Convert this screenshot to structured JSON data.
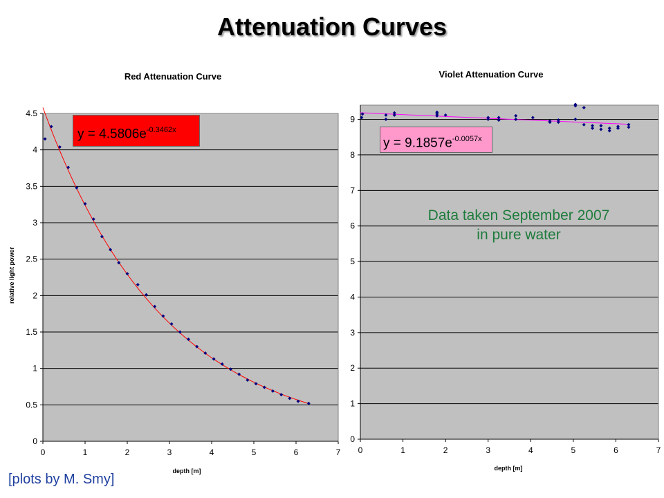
{
  "slide_title": "Attenuation Curves",
  "note": [
    "Data taken September 2007",
    "in pure water"
  ],
  "credit": "[plots by M. Smy]",
  "colors": {
    "plot_bg": "#c0c0c0",
    "red_fit": "#ff0000",
    "violet_fit": "#ff00ff",
    "points": "#000080",
    "red_eq_box": "#ff0000",
    "violet_eq_box": "#ff99cc",
    "note_text": "#1e7b3c",
    "credit_text": "#1f3f9f"
  },
  "chart_data": [
    {
      "type": "scatter",
      "title": "Red Attenuation Curve",
      "xlabel": "depth [m]",
      "ylabel": "relative light power",
      "xlim": [
        0,
        7
      ],
      "ylim": [
        0,
        4.5
      ],
      "x_ticks": [
        "0",
        "1",
        "2",
        "3",
        "4",
        "5",
        "6",
        "7"
      ],
      "y_ticks": [
        "0",
        "0.5",
        "1",
        "1.5",
        "2",
        "2.5",
        "3",
        "3.5",
        "4",
        "4.5"
      ],
      "grid": "horizontal",
      "trendline": {
        "label_main": "y = 4.5806e",
        "label_exp": "-0.3462x",
        "a": 4.5806,
        "b": -0.3462,
        "x_range": [
          0,
          6.3
        ]
      },
      "points": [
        [
          0.05,
          4.15
        ],
        [
          0.2,
          4.32
        ],
        [
          0.4,
          4.04
        ],
        [
          0.6,
          3.76
        ],
        [
          0.8,
          3.48
        ],
        [
          1.0,
          3.26
        ],
        [
          1.2,
          3.05
        ],
        [
          1.4,
          2.81
        ],
        [
          1.6,
          2.63
        ],
        [
          1.8,
          2.45
        ],
        [
          2.0,
          2.3
        ],
        [
          2.25,
          2.15
        ],
        [
          2.45,
          2.01
        ],
        [
          2.65,
          1.85
        ],
        [
          2.85,
          1.72
        ],
        [
          3.05,
          1.61
        ],
        [
          3.25,
          1.5
        ],
        [
          3.45,
          1.4
        ],
        [
          3.65,
          1.3
        ],
        [
          3.85,
          1.21
        ],
        [
          4.05,
          1.13
        ],
        [
          4.25,
          1.06
        ],
        [
          4.45,
          0.99
        ],
        [
          4.65,
          0.92
        ],
        [
          4.85,
          0.84
        ],
        [
          5.05,
          0.79
        ],
        [
          5.25,
          0.74
        ],
        [
          5.45,
          0.69
        ],
        [
          5.65,
          0.64
        ],
        [
          5.85,
          0.59
        ],
        [
          6.05,
          0.55
        ],
        [
          6.3,
          0.52
        ]
      ]
    },
    {
      "type": "scatter",
      "title": "Violet Attenuation Curve",
      "xlabel": "depth [m]",
      "ylabel": "",
      "xlim": [
        0,
        7
      ],
      "ylim": [
        0,
        9.4
      ],
      "x_ticks": [
        "0",
        "1",
        "2",
        "3",
        "4",
        "5",
        "6",
        "7"
      ],
      "y_ticks": [
        "0",
        "1",
        "2",
        "3",
        "4",
        "5",
        "6",
        "7",
        "8",
        "9"
      ],
      "grid": "horizontal",
      "trendline": {
        "label_main": "y = 9.1857e",
        "label_exp": "-0.0057x",
        "a": 9.1857,
        "b": -0.0057,
        "x_range": [
          0,
          6.3
        ]
      },
      "points": [
        [
          0.03,
          9.05
        ],
        [
          0.05,
          9.15
        ],
        [
          0.6,
          9.0
        ],
        [
          0.6,
          9.12
        ],
        [
          0.8,
          9.12
        ],
        [
          0.8,
          9.18
        ],
        [
          1.8,
          9.1
        ],
        [
          1.8,
          9.15
        ],
        [
          1.8,
          9.2
        ],
        [
          2.0,
          9.12
        ],
        [
          3.0,
          9.0
        ],
        [
          3.0,
          9.05
        ],
        [
          3.25,
          8.98
        ],
        [
          3.25,
          9.05
        ],
        [
          3.65,
          9.0
        ],
        [
          3.65,
          9.1
        ],
        [
          4.05,
          9.05
        ],
        [
          4.45,
          8.92
        ],
        [
          4.45,
          8.95
        ],
        [
          4.65,
          8.92
        ],
        [
          4.65,
          8.98
        ],
        [
          5.05,
          9.0
        ],
        [
          5.05,
          9.38
        ],
        [
          5.05,
          9.42
        ],
        [
          5.25,
          8.85
        ],
        [
          5.25,
          9.33
        ],
        [
          5.45,
          8.75
        ],
        [
          5.45,
          8.82
        ],
        [
          5.65,
          8.72
        ],
        [
          5.65,
          8.82
        ],
        [
          5.85,
          8.68
        ],
        [
          5.85,
          8.75
        ],
        [
          6.05,
          8.75
        ],
        [
          6.05,
          8.8
        ],
        [
          6.3,
          8.78
        ],
        [
          6.3,
          8.85
        ]
      ]
    }
  ]
}
